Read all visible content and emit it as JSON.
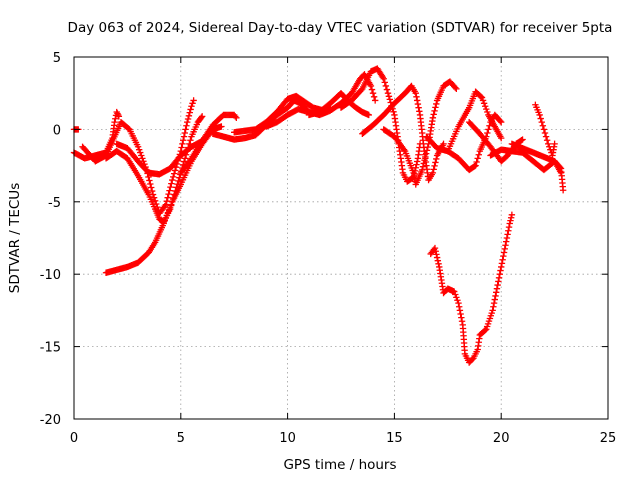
{
  "chart_data": {
    "type": "scatter",
    "title": "Day 063 of 2024, Sidereal Day-to-day VTEC variation (SDTVAR) for receiver 5pta",
    "xlabel": "GPS time / hours",
    "ylabel": "SDTVAR / TECUs",
    "xlim": [
      0,
      25
    ],
    "ylim": [
      -20,
      5
    ],
    "xticks": [
      0,
      5,
      10,
      15,
      20,
      25
    ],
    "yticks": [
      -20,
      -15,
      -10,
      -5,
      0,
      5
    ],
    "grid": true,
    "marker": "+",
    "colors": {
      "series": "#ff0000",
      "grid": "#a0a0a0",
      "axis": "#000000"
    },
    "series": [
      {
        "name": "arc-01",
        "points": [
          [
            0.0,
            0.0
          ],
          [
            0.1,
            0.0
          ],
          [
            0.2,
            0.0
          ]
        ]
      },
      {
        "name": "arc-02",
        "points": [
          [
            0.0,
            -1.6
          ],
          [
            0.5,
            -2.0
          ],
          [
            1.0,
            -1.8
          ],
          [
            1.5,
            -1.6
          ],
          [
            1.8,
            -0.6
          ],
          [
            1.9,
            0.5
          ],
          [
            2.0,
            1.2
          ],
          [
            2.1,
            0.9
          ]
        ]
      },
      {
        "name": "arc-03",
        "points": [
          [
            0.4,
            -1.2
          ],
          [
            1.0,
            -2.2
          ],
          [
            1.5,
            -1.8
          ],
          [
            1.8,
            -0.8
          ],
          [
            2.2,
            0.5
          ],
          [
            2.6,
            0.0
          ],
          [
            3.0,
            -1.2
          ],
          [
            3.4,
            -2.8
          ],
          [
            3.7,
            -4.5
          ],
          [
            4.0,
            -5.8
          ],
          [
            4.3,
            -5.2
          ],
          [
            4.6,
            -3.5
          ],
          [
            5.0,
            -1.5
          ],
          [
            5.3,
            0.5
          ],
          [
            5.5,
            1.6
          ],
          [
            5.6,
            2.0
          ]
        ]
      },
      {
        "name": "arc-04",
        "points": [
          [
            1.5,
            -2.0
          ],
          [
            2.0,
            -1.5
          ],
          [
            2.5,
            -2.0
          ],
          [
            3.0,
            -3.2
          ],
          [
            3.5,
            -4.5
          ],
          [
            3.8,
            -5.5
          ],
          [
            4.0,
            -6.2
          ],
          [
            4.2,
            -6.4
          ],
          [
            4.5,
            -5.5
          ],
          [
            4.8,
            -4.0
          ],
          [
            5.2,
            -2.0
          ],
          [
            5.5,
            -0.5
          ],
          [
            5.8,
            0.5
          ],
          [
            6.0,
            0.9
          ]
        ]
      },
      {
        "name": "arc-05",
        "points": [
          [
            1.5,
            -9.9
          ],
          [
            2.0,
            -9.7
          ],
          [
            2.5,
            -9.5
          ],
          [
            3.0,
            -9.2
          ],
          [
            3.5,
            -8.5
          ],
          [
            3.8,
            -7.8
          ],
          [
            4.2,
            -6.5
          ],
          [
            4.6,
            -5.0
          ],
          [
            5.0,
            -3.8
          ],
          [
            5.5,
            -2.2
          ],
          [
            6.0,
            -1.0
          ],
          [
            6.5,
            0.0
          ],
          [
            6.9,
            0.2
          ]
        ]
      },
      {
        "name": "arc-06",
        "points": [
          [
            2.0,
            -1.0
          ],
          [
            2.5,
            -1.3
          ],
          [
            3.0,
            -2.2
          ],
          [
            3.5,
            -3.0
          ],
          [
            4.0,
            -3.1
          ],
          [
            4.5,
            -2.7
          ],
          [
            5.0,
            -1.8
          ],
          [
            5.5,
            -1.2
          ],
          [
            6.0,
            -0.8
          ],
          [
            6.3,
            -0.3
          ]
        ]
      },
      {
        "name": "arc-07",
        "points": [
          [
            5.0,
            -3.0
          ],
          [
            5.5,
            -2.0
          ],
          [
            6.0,
            -0.8
          ],
          [
            6.5,
            0.3
          ],
          [
            7.0,
            1.0
          ],
          [
            7.5,
            1.0
          ],
          [
            7.6,
            0.8
          ]
        ]
      },
      {
        "name": "arc-08",
        "points": [
          [
            6.5,
            -0.3
          ],
          [
            7.0,
            -0.5
          ],
          [
            7.5,
            -0.7
          ],
          [
            8.0,
            -0.6
          ],
          [
            8.5,
            -0.4
          ],
          [
            9.0,
            0.3
          ],
          [
            9.5,
            1.0
          ],
          [
            10.0,
            1.5
          ],
          [
            10.3,
            2.0
          ],
          [
            10.6,
            1.8
          ],
          [
            11.0,
            1.2
          ]
        ]
      },
      {
        "name": "arc-09",
        "points": [
          [
            7.5,
            -0.2
          ],
          [
            8.0,
            -0.1
          ],
          [
            8.5,
            0.0
          ],
          [
            9.0,
            0.5
          ],
          [
            9.5,
            1.2
          ],
          [
            10.0,
            2.1
          ],
          [
            10.4,
            2.3
          ],
          [
            10.8,
            1.9
          ],
          [
            11.2,
            1.5
          ],
          [
            11.7,
            1.3
          ],
          [
            12.0,
            1.5
          ]
        ]
      },
      {
        "name": "arc-10",
        "points": [
          [
            9.0,
            0.2
          ],
          [
            9.5,
            0.5
          ],
          [
            10.0,
            1.0
          ],
          [
            10.5,
            1.4
          ],
          [
            11.0,
            1.2
          ],
          [
            11.5,
            1.0
          ],
          [
            12.0,
            1.3
          ],
          [
            12.5,
            1.8
          ],
          [
            13.0,
            2.5
          ],
          [
            13.4,
            3.5
          ],
          [
            13.6,
            3.8
          ],
          [
            13.9,
            3.0
          ],
          [
            14.1,
            2.0
          ]
        ]
      },
      {
        "name": "arc-11",
        "points": [
          [
            11.0,
            1.0
          ],
          [
            11.5,
            1.2
          ],
          [
            12.0,
            1.8
          ],
          [
            12.5,
            2.5
          ],
          [
            12.8,
            2.0
          ],
          [
            13.2,
            1.5
          ],
          [
            13.5,
            1.2
          ],
          [
            13.8,
            1.0
          ]
        ]
      },
      {
        "name": "arc-12",
        "points": [
          [
            12.5,
            1.5
          ],
          [
            13.0,
            2.0
          ],
          [
            13.5,
            2.8
          ],
          [
            13.9,
            4.0
          ],
          [
            14.2,
            4.2
          ],
          [
            14.5,
            3.5
          ],
          [
            14.7,
            2.5
          ],
          [
            15.0,
            1.0
          ],
          [
            15.2,
            -1.0
          ],
          [
            15.4,
            -3.0
          ],
          [
            15.6,
            -3.6
          ],
          [
            15.9,
            -3.3
          ],
          [
            16.1,
            -2.0
          ],
          [
            16.2,
            -1.0
          ]
        ]
      },
      {
        "name": "arc-13",
        "points": [
          [
            13.5,
            -0.3
          ],
          [
            14.0,
            0.3
          ],
          [
            14.5,
            1.0
          ],
          [
            15.0,
            1.8
          ],
          [
            15.5,
            2.5
          ],
          [
            15.8,
            3.0
          ],
          [
            16.0,
            2.5
          ],
          [
            16.2,
            1.0
          ],
          [
            16.4,
            -1.5
          ],
          [
            16.6,
            -3.5
          ],
          [
            16.8,
            -3.0
          ],
          [
            17.0,
            -1.8
          ],
          [
            17.3,
            -1.0
          ]
        ]
      },
      {
        "name": "arc-14",
        "points": [
          [
            14.5,
            0.0
          ],
          [
            15.0,
            -0.5
          ],
          [
            15.5,
            -1.5
          ],
          [
            15.9,
            -3.0
          ],
          [
            16.0,
            -3.8
          ],
          [
            16.3,
            -2.8
          ],
          [
            16.6,
            -1.0
          ],
          [
            16.8,
            0.8
          ],
          [
            17.0,
            2.0
          ],
          [
            17.3,
            3.0
          ],
          [
            17.6,
            3.3
          ],
          [
            17.9,
            2.8
          ]
        ]
      },
      {
        "name": "arc-15",
        "points": [
          [
            16.5,
            -0.5
          ],
          [
            17.0,
            -1.3
          ],
          [
            17.5,
            -1.5
          ],
          [
            18.0,
            -2.0
          ],
          [
            18.5,
            -2.8
          ],
          [
            18.8,
            -2.5
          ],
          [
            19.0,
            -1.5
          ],
          [
            19.3,
            -0.5
          ],
          [
            19.5,
            0.5
          ],
          [
            19.7,
            1.0
          ],
          [
            20.0,
            0.5
          ]
        ]
      },
      {
        "name": "arc-16",
        "points": [
          [
            17.5,
            -1.5
          ],
          [
            18.0,
            0.2
          ],
          [
            18.5,
            1.5
          ],
          [
            18.8,
            2.6
          ],
          [
            19.1,
            2.2
          ],
          [
            19.4,
            1.0
          ],
          [
            19.7,
            0.2
          ],
          [
            20.0,
            -0.6
          ]
        ]
      },
      {
        "name": "arc-17",
        "points": [
          [
            18.5,
            0.5
          ],
          [
            19.0,
            -0.3
          ],
          [
            19.5,
            -1.2
          ],
          [
            20.0,
            -2.2
          ],
          [
            20.3,
            -1.8
          ],
          [
            20.7,
            -1.0
          ],
          [
            21.0,
            -0.7
          ]
        ]
      },
      {
        "name": "arc-18",
        "points": [
          [
            19.5,
            -1.8
          ],
          [
            20.0,
            -1.4
          ],
          [
            20.5,
            -1.5
          ],
          [
            21.0,
            -1.6
          ],
          [
            21.5,
            -2.2
          ],
          [
            22.0,
            -2.8
          ],
          [
            22.5,
            -2.2
          ],
          [
            22.8,
            -2.7
          ],
          [
            22.9,
            -4.2
          ]
        ]
      },
      {
        "name": "arc-19",
        "points": [
          [
            20.5,
            -1.0
          ],
          [
            21.0,
            -1.3
          ],
          [
            21.5,
            -1.6
          ],
          [
            22.0,
            -1.9
          ],
          [
            22.5,
            -2.2
          ],
          [
            22.8,
            -3.0
          ]
        ]
      },
      {
        "name": "arc-20",
        "points": [
          [
            21.6,
            1.7
          ],
          [
            21.8,
            1.0
          ],
          [
            22.0,
            0.0
          ],
          [
            22.2,
            -1.0
          ],
          [
            22.4,
            -1.8
          ],
          [
            22.5,
            -1.0
          ]
        ]
      },
      {
        "name": "arc-21",
        "points": [
          [
            16.7,
            -8.6
          ],
          [
            16.9,
            -8.2
          ],
          [
            17.1,
            -9.5
          ],
          [
            17.3,
            -11.3
          ],
          [
            17.5,
            -11.0
          ],
          [
            17.8,
            -11.2
          ],
          [
            18.0,
            -12.0
          ],
          [
            18.2,
            -13.5
          ],
          [
            18.3,
            -15.5
          ],
          [
            18.5,
            -16.1
          ],
          [
            18.7,
            -15.8
          ],
          [
            18.9,
            -15.2
          ],
          [
            19.0,
            -14.2
          ],
          [
            19.3,
            -13.8
          ],
          [
            19.6,
            -12.5
          ],
          [
            19.8,
            -11.0
          ],
          [
            20.0,
            -9.5
          ],
          [
            20.2,
            -8.0
          ],
          [
            20.4,
            -6.5
          ],
          [
            20.5,
            -5.9
          ]
        ]
      }
    ]
  }
}
